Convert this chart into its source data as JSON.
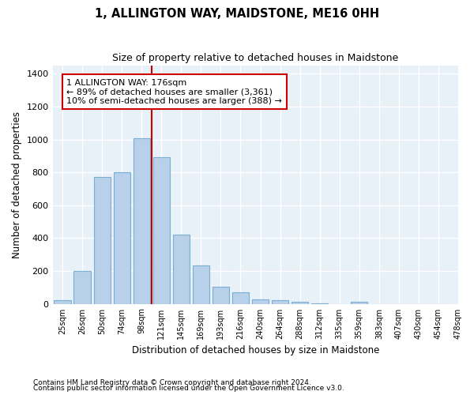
{
  "title": "1, ALLINGTON WAY, MAIDSTONE, ME16 0HH",
  "subtitle": "Size of property relative to detached houses in Maidstone",
  "xlabel": "Distribution of detached houses by size in Maidstone",
  "ylabel": "Number of detached properties",
  "bar_color": "#b8d0ea",
  "bar_edge_color": "#7aafd4",
  "background_color": "#e8f0f8",
  "grid_color": "#ffffff",
  "vline_x": 5,
  "vline_color": "#cc0000",
  "annotation_text": "1 ALLINGTON WAY: 176sqm\n← 89% of detached houses are smaller (3,361)\n10% of semi-detached houses are larger (388) →",
  "annotation_box_color": "#cc0000",
  "bin_labels": [
    "25sqm",
    "26sqm",
    "50sqm",
    "74sqm",
    "98sqm",
    "121sqm",
    "145sqm",
    "169sqm",
    "193sqm",
    "216sqm",
    "240sqm",
    "264sqm",
    "288sqm",
    "312sqm",
    "335sqm",
    "359sqm",
    "383sqm",
    "407sqm",
    "430sqm",
    "454sqm",
    "478sqm"
  ],
  "bar_heights": [
    20,
    200,
    770,
    800,
    1010,
    890,
    420,
    235,
    105,
    70,
    25,
    20,
    13,
    5,
    0,
    12,
    0,
    0,
    0,
    0
  ],
  "ylim": [
    0,
    1450
  ],
  "yticks": [
    0,
    200,
    400,
    600,
    800,
    1000,
    1200,
    1400
  ],
  "footnote1": "Contains HM Land Registry data © Crown copyright and database right 2024.",
  "footnote2": "Contains public sector information licensed under the Open Government Licence v3.0."
}
